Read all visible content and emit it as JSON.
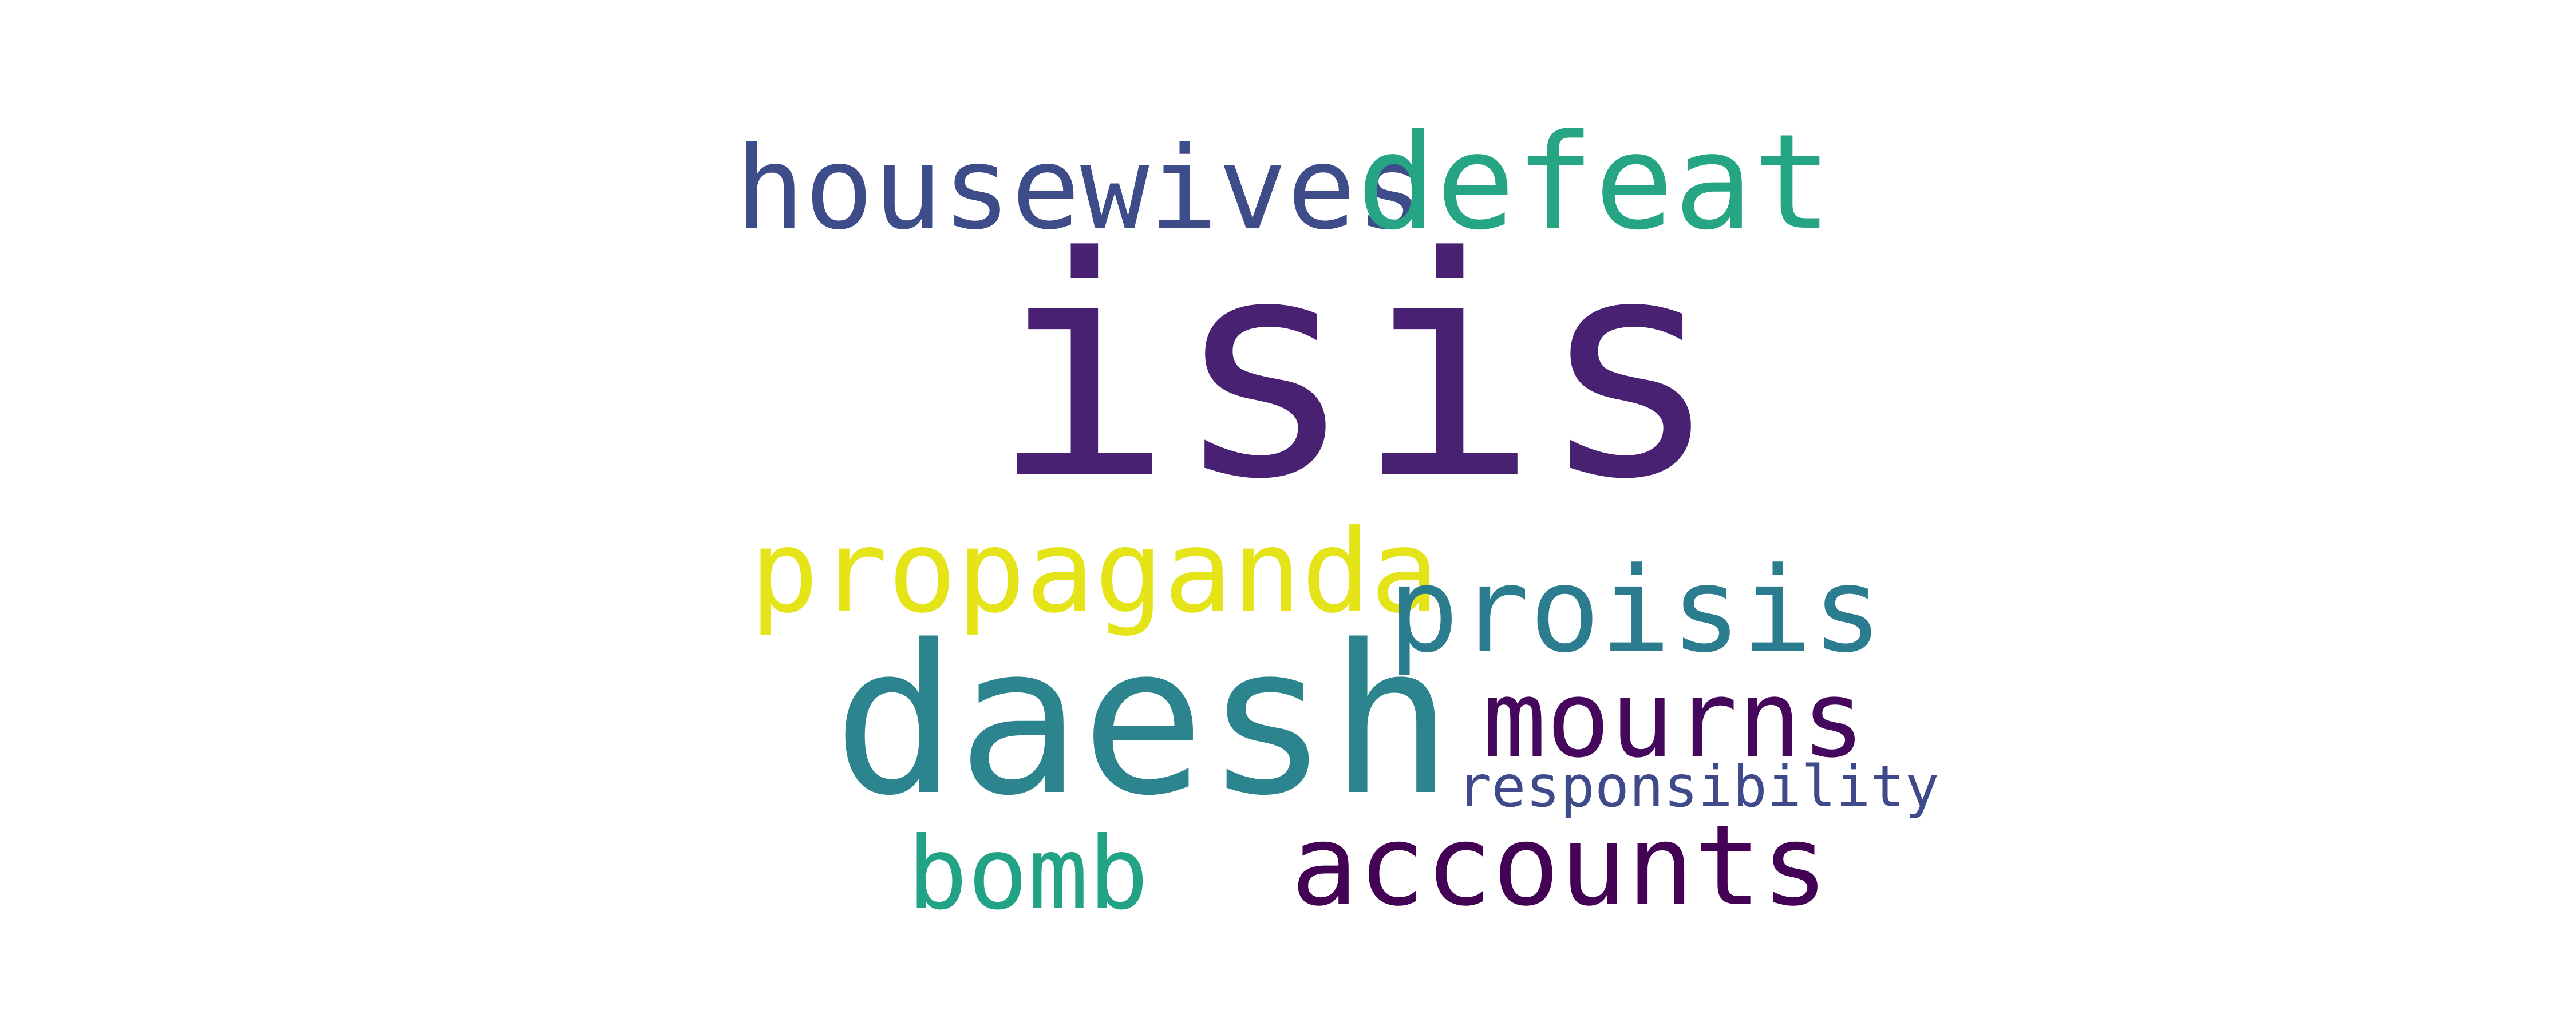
{
  "words": {
    "isis": {
      "text": "isis",
      "color": "#482173"
    },
    "daesh": {
      "text": "daesh",
      "color": "#2c848e"
    },
    "housewives": {
      "text": "housewives",
      "color": "#3e4c8a"
    },
    "defeat": {
      "text": "defeat",
      "color": "#25a584"
    },
    "propaganda": {
      "text": "propaganda",
      "color": "#e5e419"
    },
    "proisis": {
      "text": "proisis",
      "color": "#2a7c8e"
    },
    "mourns": {
      "text": "mourns",
      "color": "#46085c"
    },
    "responsibility": {
      "text": "responsibility",
      "color": "#3e4a89"
    },
    "accounts": {
      "text": "accounts",
      "color": "#440255"
    },
    "bomb": {
      "text": "bomb",
      "color": "#22a385"
    }
  },
  "background_color": "#ffffff"
}
